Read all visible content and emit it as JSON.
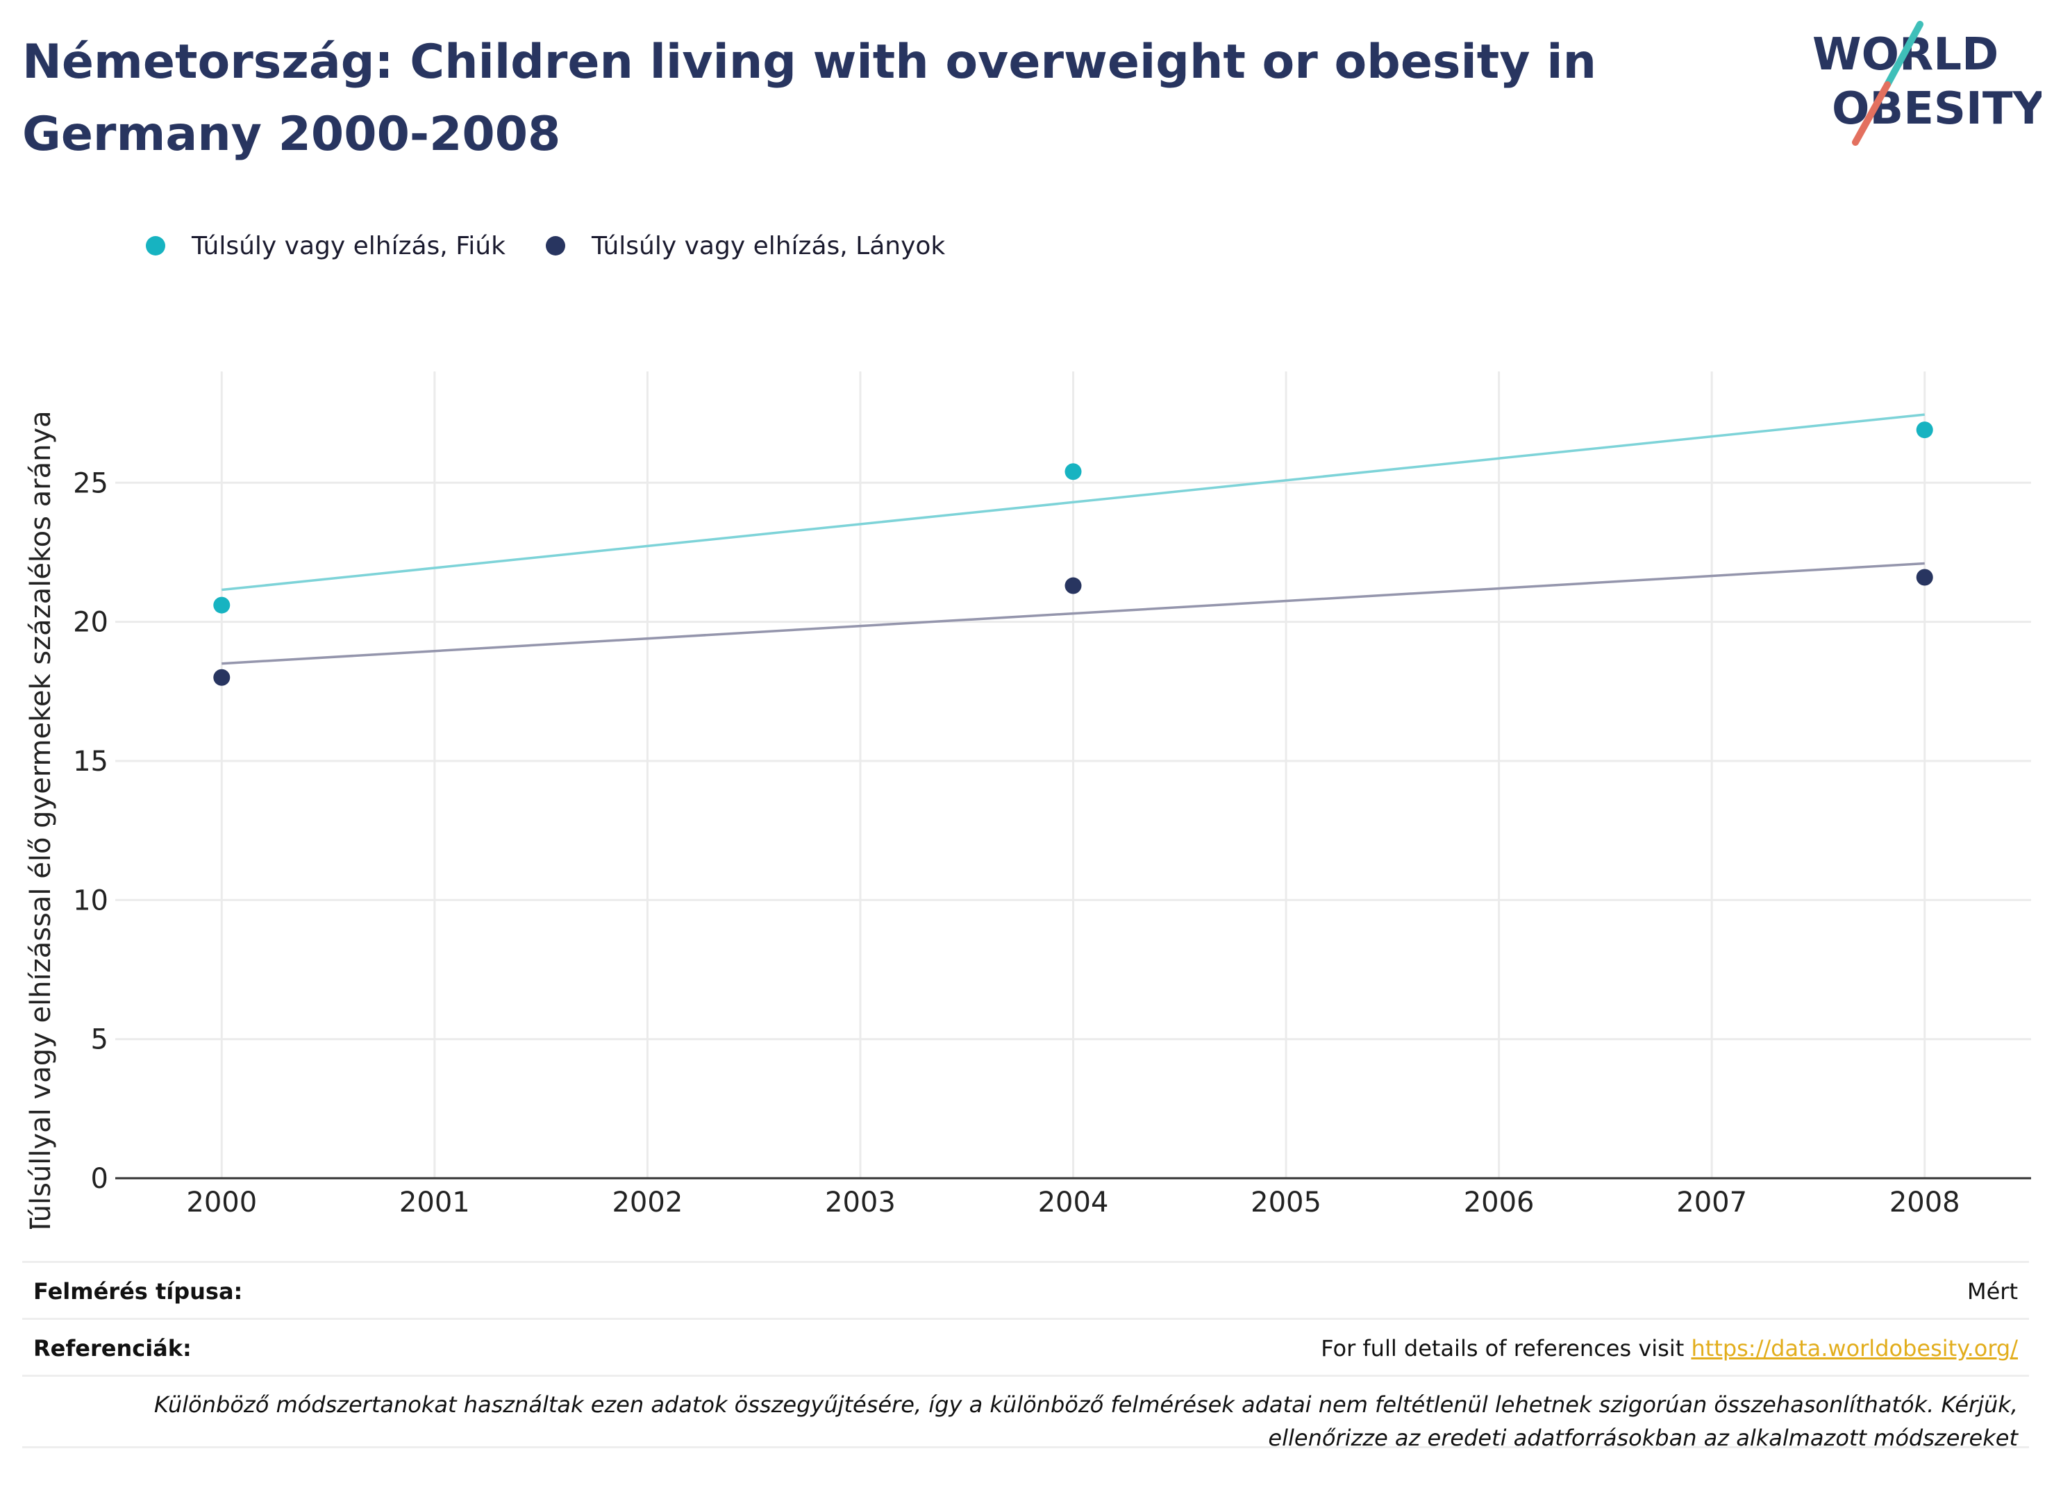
{
  "title": "Németország: Children living with overweight or obesity in Germany 2000-2008",
  "logo": {
    "line1": "WORLD",
    "line2": "OBESITY"
  },
  "legend": [
    {
      "label": "Túlsúly vagy elhízás, Fiúk",
      "color": "#17b3c1"
    },
    {
      "label": "Túlsúly vagy elhízás, Lányok",
      "color": "#283560"
    }
  ],
  "chart_data": {
    "type": "scatter",
    "title": "Németország: Children living with overweight or obesity in Germany 2000-2008",
    "xlabel": "",
    "ylabel": "Túlsúllyal vagy elhízással élő gyermekek százalékos aránya",
    "x_ticks": [
      2000,
      2001,
      2002,
      2003,
      2004,
      2005,
      2006,
      2007,
      2008
    ],
    "y_ticks": [
      0,
      5,
      10,
      15,
      20,
      25
    ],
    "xlim": [
      1999.5,
      2008.5
    ],
    "ylim": [
      0,
      29
    ],
    "grid": true,
    "legend_position": "top-left",
    "series": [
      {
        "name": "Túlsúly vagy elhízás, Fiúk",
        "color": "#17b3c1",
        "trend_color": "#7dd3d8",
        "x": [
          2000,
          2004,
          2008
        ],
        "y": [
          20.6,
          25.4,
          26.9
        ],
        "trend": [
          [
            2000,
            21.15
          ],
          [
            2008,
            27.45
          ]
        ]
      },
      {
        "name": "Túlsúly vagy elhízás, Lányok",
        "color": "#283560",
        "trend_color": "#9495ac",
        "x": [
          2000,
          2004,
          2008
        ],
        "y": [
          18.0,
          21.3,
          21.6
        ],
        "trend": [
          [
            2000,
            18.5
          ],
          [
            2008,
            22.1
          ]
        ]
      }
    ]
  },
  "footer": {
    "survey_type_label": "Felmérés típusa:",
    "survey_type_value": "Mért",
    "references_label": "Referenciák:",
    "references_text": "For full details of references visit ",
    "references_link": "https://data.worldobesity.org/",
    "note": "Különböző módszertanokat használtak ezen adatok összegyűjtésére, így a különböző felmérések adatai nem feltétlenül lehetnek szigorúan összehasonlíthatók. Kérjük, ellenőrizze az eredeti adatforrásokban az alkalmazott módszereket"
  }
}
